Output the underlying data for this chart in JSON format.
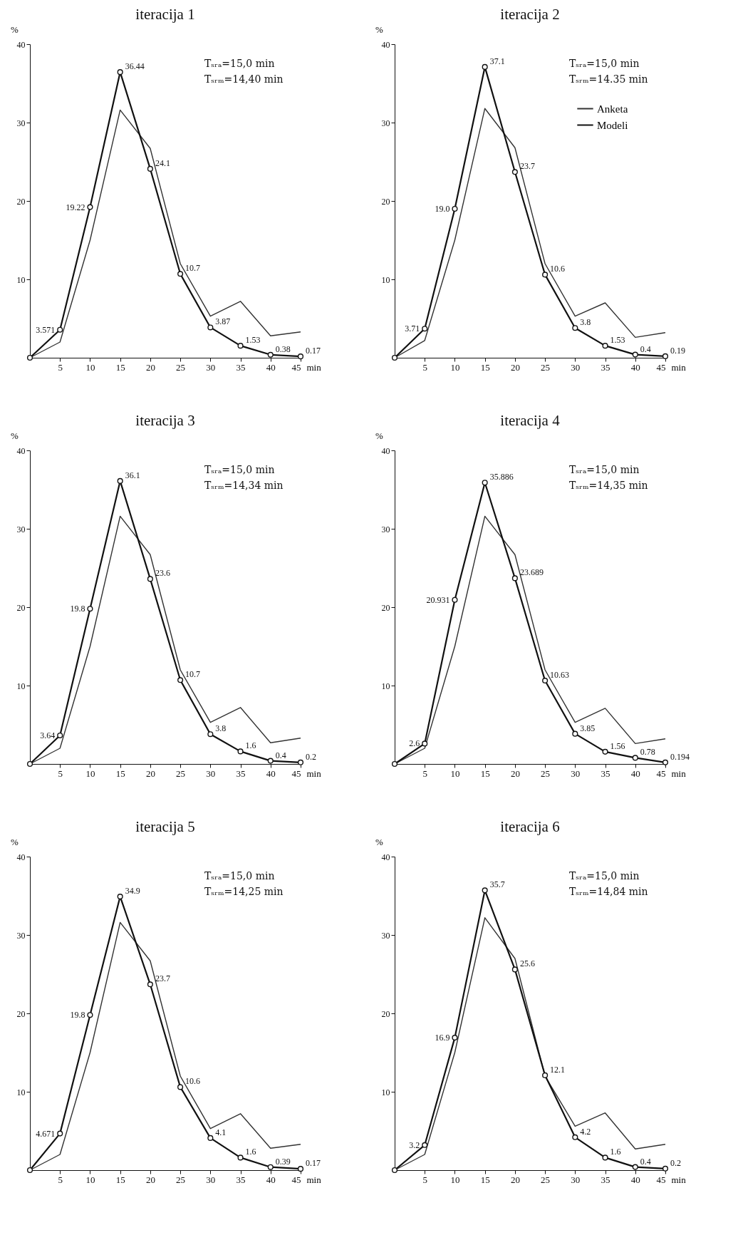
{
  "chart_data": [
    {
      "type": "line",
      "title": "iteracija 1",
      "xlabel": "min",
      "ylabel": "%",
      "x": [
        0,
        5,
        10,
        15,
        20,
        25,
        30,
        35,
        40,
        45
      ],
      "xlim": [
        0,
        45
      ],
      "xticks": [
        5,
        10,
        15,
        20,
        25,
        30,
        35,
        40,
        45
      ],
      "ylim": [
        0,
        40
      ],
      "yticks": [
        10,
        20,
        30,
        40
      ],
      "series": [
        {
          "color": "#333333",
          "values": [
            0,
            2,
            15,
            31.6,
            26.7,
            12,
            5.3,
            7.2,
            2.8,
            3.3
          ]
        },
        {
          "color": "#111111",
          "marker": "circle",
          "values": [
            0,
            3.571,
            19.22,
            36.44,
            24.1,
            10.7,
            3.87,
            1.53,
            0.38,
            0.17
          ],
          "value_labels": [
            null,
            "3.571",
            "19.22",
            "36.44",
            "24.1",
            "10.7",
            "3.87",
            "1.53",
            "0.38",
            "0.17"
          ]
        }
      ],
      "annotations": [
        "Tₛᵣₐ=15,0 min",
        "Tₛᵣₘ=14,40 min"
      ]
    },
    {
      "type": "line",
      "title": "iteracija 2",
      "xlabel": "min",
      "ylabel": "%",
      "x": [
        0,
        5,
        10,
        15,
        20,
        25,
        30,
        35,
        40,
        45
      ],
      "xlim": [
        0,
        45
      ],
      "xticks": [
        5,
        10,
        15,
        20,
        25,
        30,
        35,
        40,
        45
      ],
      "ylim": [
        0,
        40
      ],
      "yticks": [
        10,
        20,
        30,
        40
      ],
      "legend": "top right",
      "series": [
        {
          "name": "Anketa",
          "color": "#333333",
          "values": [
            0,
            2.2,
            15,
            31.8,
            26.8,
            12,
            5.3,
            7,
            2.6,
            3.2
          ]
        },
        {
          "name": "Modeli",
          "color": "#111111",
          "marker": "circle",
          "values": [
            0,
            3.71,
            19.0,
            37.1,
            23.7,
            10.6,
            3.8,
            1.53,
            0.4,
            0.19
          ],
          "value_labels": [
            null,
            "3.71",
            "19.0",
            "37.1",
            "23.7",
            "10.6",
            "3.8",
            "1.53",
            "0.4",
            "0.19"
          ]
        }
      ],
      "annotations": [
        "Tₛᵣₐ=15,0 min",
        "Tₛᵣₘ=14.35 min"
      ]
    },
    {
      "type": "line",
      "title": "iteracija 3",
      "xlabel": "min",
      "ylabel": "%",
      "x": [
        0,
        5,
        10,
        15,
        20,
        25,
        30,
        35,
        40,
        45
      ],
      "xlim": [
        0,
        45
      ],
      "xticks": [
        5,
        10,
        15,
        20,
        25,
        30,
        35,
        40,
        45
      ],
      "ylim": [
        0,
        40
      ],
      "yticks": [
        10,
        20,
        30,
        40
      ],
      "series": [
        {
          "color": "#333333",
          "values": [
            0,
            2,
            15,
            31.6,
            26.7,
            12,
            5.3,
            7.2,
            2.7,
            3.3
          ]
        },
        {
          "color": "#111111",
          "marker": "circle",
          "values": [
            0,
            3.64,
            19.8,
            36.1,
            23.6,
            10.7,
            3.8,
            1.6,
            0.4,
            0.2
          ],
          "value_labels": [
            null,
            "3.64",
            "19.8",
            "36.1",
            "23.6",
            "10.7",
            "3.8",
            "1.6",
            "0.4",
            "0.2"
          ]
        }
      ],
      "annotations": [
        "Tₛᵣₐ=15,0 min",
        "Tₛᵣₘ=14,34 min"
      ]
    },
    {
      "type": "line",
      "title": "iteracija 4",
      "xlabel": "min",
      "ylabel": "%",
      "x": [
        0,
        5,
        10,
        15,
        20,
        25,
        30,
        35,
        40,
        45
      ],
      "xlim": [
        0,
        45
      ],
      "xticks": [
        5,
        10,
        15,
        20,
        25,
        30,
        35,
        40,
        45
      ],
      "ylim": [
        0,
        40
      ],
      "yticks": [
        10,
        20,
        30,
        40
      ],
      "series": [
        {
          "color": "#333333",
          "values": [
            0,
            2,
            15,
            31.6,
            26.7,
            12,
            5.3,
            7.1,
            2.6,
            3.2
          ]
        },
        {
          "color": "#111111",
          "marker": "circle",
          "values": [
            0,
            2.6,
            20.931,
            35.886,
            23.689,
            10.63,
            3.85,
            1.56,
            0.78,
            0.194
          ],
          "value_labels": [
            null,
            "2.6",
            "20.931",
            "35.886",
            "23.689",
            "10.63",
            "3.85",
            "1.56",
            "0.78",
            "0.194"
          ]
        }
      ],
      "annotations": [
        "Tₛᵣₐ=15,0 min",
        "Tₛᵣₘ=14,35 min"
      ]
    },
    {
      "type": "line",
      "title": "iteracija 5",
      "xlabel": "min",
      "ylabel": "%",
      "x": [
        0,
        5,
        10,
        15,
        20,
        25,
        30,
        35,
        40,
        45
      ],
      "xlim": [
        0,
        45
      ],
      "xticks": [
        5,
        10,
        15,
        20,
        25,
        30,
        35,
        40,
        45
      ],
      "ylim": [
        0,
        40
      ],
      "yticks": [
        10,
        20,
        30,
        40
      ],
      "series": [
        {
          "color": "#333333",
          "values": [
            0,
            2,
            15,
            31.6,
            26.7,
            12,
            5.3,
            7.2,
            2.8,
            3.3
          ]
        },
        {
          "color": "#111111",
          "marker": "circle",
          "values": [
            0,
            4.671,
            19.8,
            34.9,
            23.7,
            10.6,
            4.1,
            1.6,
            0.39,
            0.17
          ],
          "value_labels": [
            null,
            "4.671",
            "19.8",
            "34.9",
            "23.7",
            "10.6",
            "4.1",
            "1.6",
            "0.39",
            "0.17"
          ]
        }
      ],
      "annotations": [
        "Tₛᵣₐ=15,0 min",
        "Tₛᵣₘ=14,25 min"
      ]
    },
    {
      "type": "line",
      "title": "iteracija 6",
      "xlabel": "min",
      "ylabel": "%",
      "x": [
        0,
        5,
        10,
        15,
        20,
        25,
        30,
        35,
        40,
        45
      ],
      "xlim": [
        0,
        45
      ],
      "xticks": [
        5,
        10,
        15,
        20,
        25,
        30,
        35,
        40,
        45
      ],
      "ylim": [
        0,
        40
      ],
      "yticks": [
        10,
        20,
        30,
        40
      ],
      "series": [
        {
          "color": "#333333",
          "values": [
            0,
            2,
            15,
            32.2,
            27,
            12,
            5.6,
            7.3,
            2.7,
            3.3
          ]
        },
        {
          "color": "#111111",
          "marker": "circle",
          "values": [
            0,
            3.2,
            16.9,
            35.7,
            25.6,
            12.1,
            4.2,
            1.6,
            0.4,
            0.2
          ],
          "value_labels": [
            null,
            "3.2",
            "16.9",
            "35.7",
            "25.6",
            "12.1",
            "4.2",
            "1.6",
            "0.4",
            "0.2"
          ]
        }
      ],
      "annotations": [
        "Tₛᵣₐ=15,0 min",
        "Tₛᵣₘ=14,84 min"
      ]
    }
  ]
}
